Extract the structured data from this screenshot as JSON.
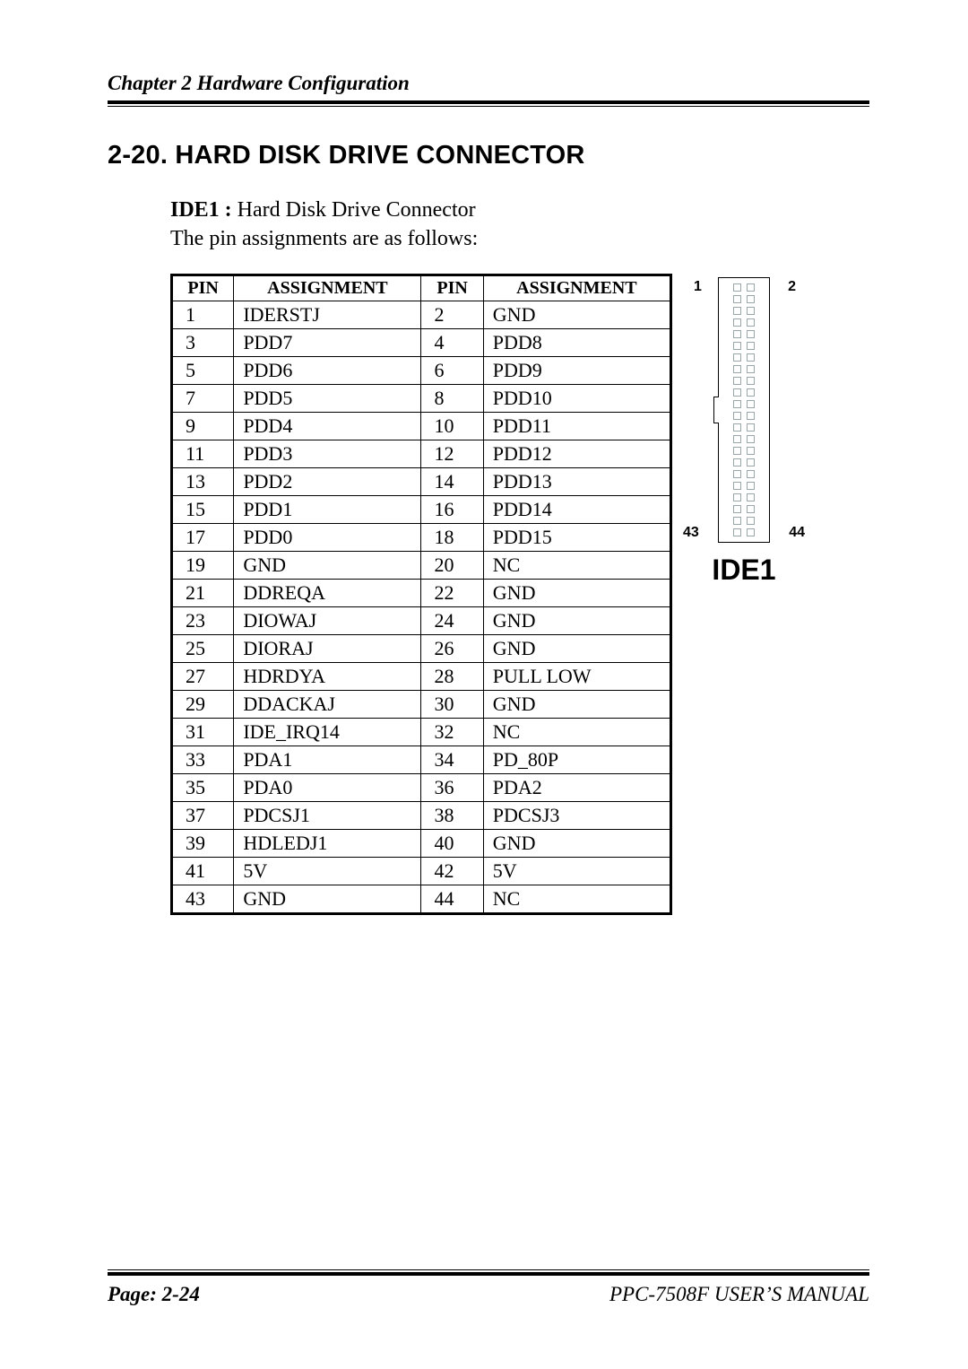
{
  "header": {
    "chapter_line": "Chapter    2    Hardware Configuration"
  },
  "section": {
    "title": "2-20. HARD DISK DRIVE CONNECTOR",
    "intro_bold": "IDE1 :",
    "intro_rest": " Hard Disk Drive Connector",
    "intro_line2": "The pin assignments are as follows:"
  },
  "table": {
    "headers": [
      "PIN",
      "ASSIGNMENT",
      "PIN",
      "ASSIGNMENT"
    ],
    "rows": [
      [
        "1",
        "IDERSTJ",
        "2",
        "GND"
      ],
      [
        "3",
        "PDD7",
        "4",
        "PDD8"
      ],
      [
        "5",
        "PDD6",
        "6",
        "PDD9"
      ],
      [
        "7",
        "PDD5",
        "8",
        "PDD10"
      ],
      [
        "9",
        "PDD4",
        "10",
        "PDD11"
      ],
      [
        "11",
        "PDD3",
        "12",
        "PDD12"
      ],
      [
        "13",
        "PDD2",
        "14",
        "PDD13"
      ],
      [
        "15",
        "PDD1",
        "16",
        "PDD14"
      ],
      [
        "17",
        "PDD0",
        "18",
        "PDD15"
      ],
      [
        "19",
        "GND",
        "20",
        "NC"
      ],
      [
        "21",
        "DDREQA",
        "22",
        "GND"
      ],
      [
        "23",
        "DIOWAJ",
        "24",
        "GND"
      ],
      [
        "25",
        "DIORAJ",
        "26",
        "GND"
      ],
      [
        "27",
        "HDRDYA",
        "28",
        "PULL LOW"
      ],
      [
        "29",
        "DDACKAJ",
        "30",
        "GND"
      ],
      [
        "31",
        "IDE_IRQ14",
        "32",
        "NC"
      ],
      [
        "33",
        "PDA1",
        "34",
        "PD_80P"
      ],
      [
        "35",
        "PDA0",
        "36",
        "PDA2"
      ],
      [
        "37",
        "PDCSJ1",
        "38",
        "PDCSJ3"
      ],
      [
        "39",
        "HDLEDJ1",
        "40",
        "GND"
      ],
      [
        "41",
        "5V",
        "42",
        "5V"
      ],
      [
        "43",
        "GND",
        "44",
        "NC"
      ]
    ]
  },
  "connector": {
    "rows": 22,
    "labels": {
      "tl": "1",
      "tr": "2",
      "bl": "43",
      "br": "44"
    },
    "caption": "IDE1",
    "pin_border_color": "#9aa7aa"
  },
  "footer": {
    "page_label": "Page: 2-24",
    "manual_prefix": "PPC-7508F USER",
    "apostrophe": "’",
    "manual_suffix": "S MANUAL"
  }
}
